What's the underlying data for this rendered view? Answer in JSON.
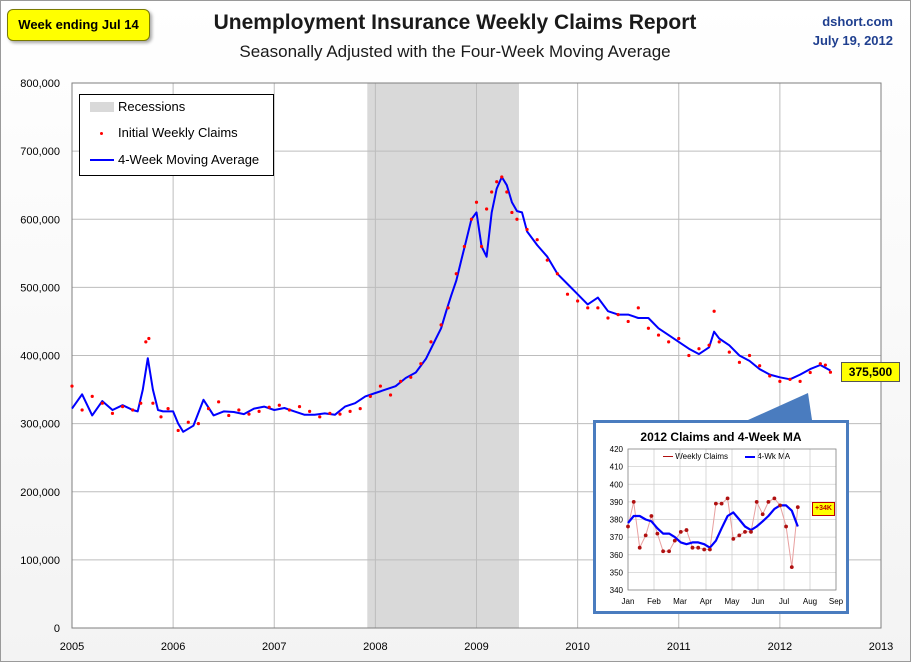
{
  "header": {
    "badge": "Week ending Jul 14",
    "title": "Unemployment Insurance Weekly Claims Report",
    "subtitle": "Seasonally Adjusted with the Four-Week Moving Average",
    "source": "dshort.com",
    "date": "July 19, 2012"
  },
  "colors": {
    "claims": "#ff0000",
    "ma": "#0000ff",
    "recession": "#d9d9d9",
    "inset_border": "#4a7cbf",
    "inset_claims": "#b01010"
  },
  "legend": {
    "recessions": "Recessions",
    "claims": "Initial Weekly Claims",
    "ma": "4-Week Moving Average"
  },
  "callout": "375,500",
  "chart_data": [
    {
      "type": "line",
      "title": "Unemployment Insurance Weekly Claims Report",
      "xlabel": "",
      "ylabel": "",
      "xlim": [
        2005,
        2013
      ],
      "ylim": [
        0,
        800000
      ],
      "y_ticks": [
        "0",
        "100,000",
        "200,000",
        "300,000",
        "400,000",
        "500,000",
        "600,000",
        "700,000",
        "800,000"
      ],
      "y_tick_values": [
        0,
        100000,
        200000,
        300000,
        400000,
        500000,
        600000,
        700000,
        800000
      ],
      "x_ticks": [
        "2005",
        "2006",
        "2007",
        "2008",
        "2009",
        "2010",
        "2011",
        "2012",
        "2013"
      ],
      "x_tick_values": [
        2005,
        2006,
        2007,
        2008,
        2009,
        2010,
        2011,
        2012,
        2013
      ],
      "recessions": [
        [
          2007.92,
          2009.42
        ]
      ],
      "series": [
        {
          "name": "Initial Weekly Claims",
          "style": "points",
          "x": [
            2005.0,
            2005.1,
            2005.2,
            2005.3,
            2005.4,
            2005.5,
            2005.6,
            2005.68,
            2005.73,
            2005.76,
            2005.8,
            2005.88,
            2005.95,
            2006.05,
            2006.15,
            2006.25,
            2006.35,
            2006.45,
            2006.55,
            2006.65,
            2006.75,
            2006.85,
            2006.95,
            2007.05,
            2007.15,
            2007.25,
            2007.35,
            2007.45,
            2007.55,
            2007.65,
            2007.75,
            2007.85,
            2007.95,
            2008.05,
            2008.15,
            2008.25,
            2008.35,
            2008.45,
            2008.55,
            2008.65,
            2008.72,
            2008.8,
            2008.88,
            2008.95,
            2009.0,
            2009.05,
            2009.1,
            2009.15,
            2009.2,
            2009.25,
            2009.3,
            2009.35,
            2009.4,
            2009.5,
            2009.6,
            2009.7,
            2009.8,
            2009.9,
            2010.0,
            2010.1,
            2010.2,
            2010.3,
            2010.4,
            2010.5,
            2010.6,
            2010.7,
            2010.8,
            2010.9,
            2011.0,
            2011.1,
            2011.2,
            2011.3,
            2011.35,
            2011.4,
            2011.5,
            2011.6,
            2011.7,
            2011.8,
            2011.9,
            2012.0,
            2012.1,
            2012.2,
            2012.3,
            2012.4,
            2012.45,
            2012.5
          ],
          "values": [
            355000,
            320000,
            340000,
            330000,
            315000,
            325000,
            320000,
            330000,
            420000,
            425000,
            330000,
            310000,
            322000,
            290000,
            302000,
            300000,
            322000,
            332000,
            312000,
            320000,
            314000,
            318000,
            324000,
            327000,
            320000,
            325000,
            318000,
            310000,
            315000,
            314000,
            318000,
            322000,
            340000,
            355000,
            342000,
            362000,
            368000,
            388000,
            420000,
            445000,
            470000,
            520000,
            560000,
            600000,
            625000,
            560000,
            615000,
            640000,
            655000,
            662000,
            640000,
            610000,
            600000,
            585000,
            570000,
            540000,
            520000,
            490000,
            480000,
            470000,
            470000,
            455000,
            460000,
            450000,
            470000,
            440000,
            430000,
            420000,
            425000,
            400000,
            410000,
            415000,
            465000,
            420000,
            405000,
            390000,
            400000,
            385000,
            370000,
            362000,
            365000,
            362000,
            375000,
            388000,
            386000,
            375500
          ]
        },
        {
          "name": "4-Week Moving Average",
          "style": "line",
          "x": [
            2005.0,
            2005.1,
            2005.2,
            2005.3,
            2005.4,
            2005.5,
            2005.6,
            2005.65,
            2005.7,
            2005.75,
            2005.8,
            2005.85,
            2005.9,
            2006.0,
            2006.05,
            2006.1,
            2006.2,
            2006.3,
            2006.4,
            2006.5,
            2006.6,
            2006.7,
            2006.8,
            2006.9,
            2007.0,
            2007.1,
            2007.2,
            2007.3,
            2007.4,
            2007.5,
            2007.6,
            2007.7,
            2007.8,
            2007.9,
            2008.0,
            2008.1,
            2008.2,
            2008.3,
            2008.4,
            2008.5,
            2008.6,
            2008.65,
            2008.7,
            2008.75,
            2008.8,
            2008.85,
            2008.9,
            2008.95,
            2009.0,
            2009.05,
            2009.1,
            2009.15,
            2009.2,
            2009.25,
            2009.3,
            2009.35,
            2009.4,
            2009.45,
            2009.5,
            2009.6,
            2009.7,
            2009.8,
            2009.9,
            2010.0,
            2010.1,
            2010.2,
            2010.3,
            2010.4,
            2010.5,
            2010.6,
            2010.7,
            2010.8,
            2010.9,
            2011.0,
            2011.1,
            2011.2,
            2011.3,
            2011.35,
            2011.4,
            2011.5,
            2011.6,
            2011.7,
            2011.8,
            2011.9,
            2012.0,
            2012.1,
            2012.2,
            2012.3,
            2012.4,
            2012.5
          ],
          "values": [
            322000,
            343000,
            312000,
            333000,
            320000,
            327000,
            320000,
            318000,
            350000,
            396000,
            350000,
            320000,
            318000,
            318000,
            300000,
            288000,
            297000,
            335000,
            312000,
            318000,
            317000,
            314000,
            322000,
            325000,
            320000,
            323000,
            318000,
            313000,
            313000,
            315000,
            313000,
            325000,
            330000,
            340000,
            345000,
            350000,
            355000,
            367000,
            375000,
            395000,
            425000,
            440000,
            465000,
            488000,
            510000,
            540000,
            570000,
            600000,
            610000,
            560000,
            545000,
            610000,
            645000,
            662000,
            650000,
            625000,
            612000,
            610000,
            582000,
            562000,
            545000,
            520000,
            505000,
            490000,
            475000,
            485000,
            465000,
            460000,
            460000,
            455000,
            455000,
            440000,
            430000,
            420000,
            410000,
            402000,
            412000,
            435000,
            425000,
            415000,
            400000,
            392000,
            380000,
            372000,
            368000,
            365000,
            372000,
            380000,
            386000,
            378000
          ]
        }
      ]
    },
    {
      "type": "line",
      "title": "2012 Claims and 4-Week MA",
      "inset": true,
      "xlim": [
        0,
        8
      ],
      "ylim": [
        340,
        420
      ],
      "y_ticks": [
        "340",
        "350",
        "360",
        "370",
        "380",
        "390",
        "400",
        "410",
        "420"
      ],
      "x_ticks": [
        "Jan",
        "Feb",
        "Mar",
        "Apr",
        "May",
        "Jun",
        "Jul",
        "Aug",
        "Sep"
      ],
      "annotation": "+34K",
      "series": [
        {
          "name": "Weekly Claims",
          "x": [
            0.0,
            0.22,
            0.45,
            0.68,
            0.9,
            1.13,
            1.35,
            1.58,
            1.8,
            2.03,
            2.25,
            2.48,
            2.7,
            2.93,
            3.15,
            3.38,
            3.6,
            3.83,
            4.05,
            4.28,
            4.5,
            4.73,
            4.95,
            5.18,
            5.4,
            5.63,
            5.85,
            6.08,
            6.3,
            6.53
          ],
          "values": [
            376,
            390,
            364,
            371,
            382,
            372,
            362,
            362,
            368,
            373,
            374,
            364,
            364,
            363,
            363,
            389,
            389,
            392,
            369,
            371,
            373,
            373,
            390,
            383,
            390,
            392,
            388,
            376,
            353,
            387
          ]
        },
        {
          "name": "4-Wk MA",
          "x": [
            0.0,
            0.22,
            0.45,
            0.68,
            0.9,
            1.13,
            1.35,
            1.58,
            1.8,
            2.03,
            2.25,
            2.48,
            2.7,
            2.93,
            3.15,
            3.38,
            3.6,
            3.83,
            4.05,
            4.28,
            4.5,
            4.73,
            4.95,
            5.18,
            5.4,
            5.63,
            5.85,
            6.08,
            6.3,
            6.53
          ],
          "values": [
            378,
            382,
            382,
            380,
            379,
            375,
            372,
            372,
            370,
            367,
            366,
            367,
            367,
            366,
            364,
            368,
            375,
            382,
            384,
            380,
            376,
            374,
            376,
            379,
            382,
            386,
            388,
            388,
            385,
            376
          ]
        }
      ]
    }
  ]
}
